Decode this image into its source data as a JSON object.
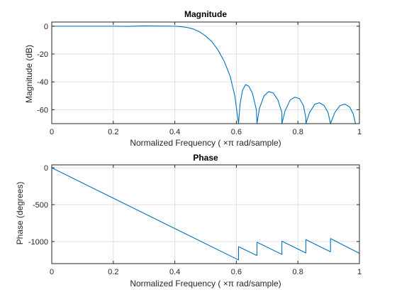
{
  "chart_data": [
    {
      "type": "line",
      "title": "Magnitude",
      "xlabel": "Normalized  Frequency    ( ×π  rad/sample)",
      "ylabel": "Magnitude (dB)",
      "xlim": [
        0,
        1
      ],
      "ylim": [
        -70,
        3
      ],
      "xticks": [
        0,
        0.2,
        0.4,
        0.6,
        0.8,
        1
      ],
      "xtick_labels": [
        "0",
        "0.2",
        "0.4",
        "0.6",
        "0.8",
        "1"
      ],
      "yticks": [
        0,
        -20,
        -40,
        -60
      ],
      "ytick_labels": [
        "0",
        "-20",
        "-40",
        "-60"
      ],
      "grid": true,
      "series": [
        {
          "color": "#0072bd",
          "x": [
            0,
            0.05,
            0.1,
            0.15,
            0.2,
            0.25,
            0.3,
            0.35,
            0.4,
            0.42,
            0.44,
            0.46,
            0.48,
            0.5,
            0.52,
            0.54,
            0.56,
            0.58,
            0.595,
            0.607,
            0.607,
            0.612,
            0.62,
            0.63,
            0.64,
            0.652,
            0.665,
            0.667,
            0.667,
            0.675,
            0.69,
            0.705,
            0.72,
            0.735,
            0.748,
            0.748,
            0.758,
            0.775,
            0.79,
            0.805,
            0.818,
            0.826,
            0.826,
            0.838,
            0.855,
            0.87,
            0.885,
            0.898,
            0.906,
            0.906,
            0.92,
            0.937,
            0.953,
            0.968,
            0.98,
            0.987
          ],
          "y": [
            0,
            0,
            0,
            0,
            0,
            -0.1,
            0.2,
            0.1,
            0,
            -0.3,
            -0.9,
            -2,
            -4,
            -7,
            -11,
            -17,
            -25,
            -36,
            -50,
            -70,
            -70,
            -56,
            -46,
            -42,
            -43,
            -48,
            -60,
            -70,
            -70,
            -59,
            -50,
            -47,
            -48,
            -53,
            -62,
            -70,
            -61,
            -53,
            -51,
            -52,
            -57,
            -66,
            -70,
            -62,
            -56,
            -55,
            -57,
            -62,
            -70,
            -70,
            -62,
            -57,
            -56,
            -58,
            -63,
            -70
          ]
        }
      ]
    },
    {
      "type": "line",
      "title": "Phase",
      "xlabel": "Normalized  Frequency    ( ×π  rad/sample)",
      "ylabel": "Phase (degrees)",
      "xlim": [
        0,
        1
      ],
      "ylim": [
        -1300,
        40
      ],
      "xticks": [
        0,
        0.2,
        0.4,
        0.6,
        0.8,
        1
      ],
      "xtick_labels": [
        "0",
        "0.2",
        "0.4",
        "0.6",
        "0.8",
        "1"
      ],
      "yticks": [
        0,
        -500,
        -1000
      ],
      "ytick_labels": [
        "0",
        "-500",
        "-1000"
      ],
      "grid": true,
      "series": [
        {
          "color": "#0072bd",
          "x": [
            0,
            0.607,
            0.607,
            0.667,
            0.667,
            0.748,
            0.748,
            0.826,
            0.826,
            0.906,
            0.906,
            1
          ],
          "y": [
            0,
            -1250,
            -1070,
            -1190,
            -1010,
            -1175,
            -995,
            -1155,
            -975,
            -1140,
            -960,
            -1160
          ]
        }
      ]
    }
  ]
}
